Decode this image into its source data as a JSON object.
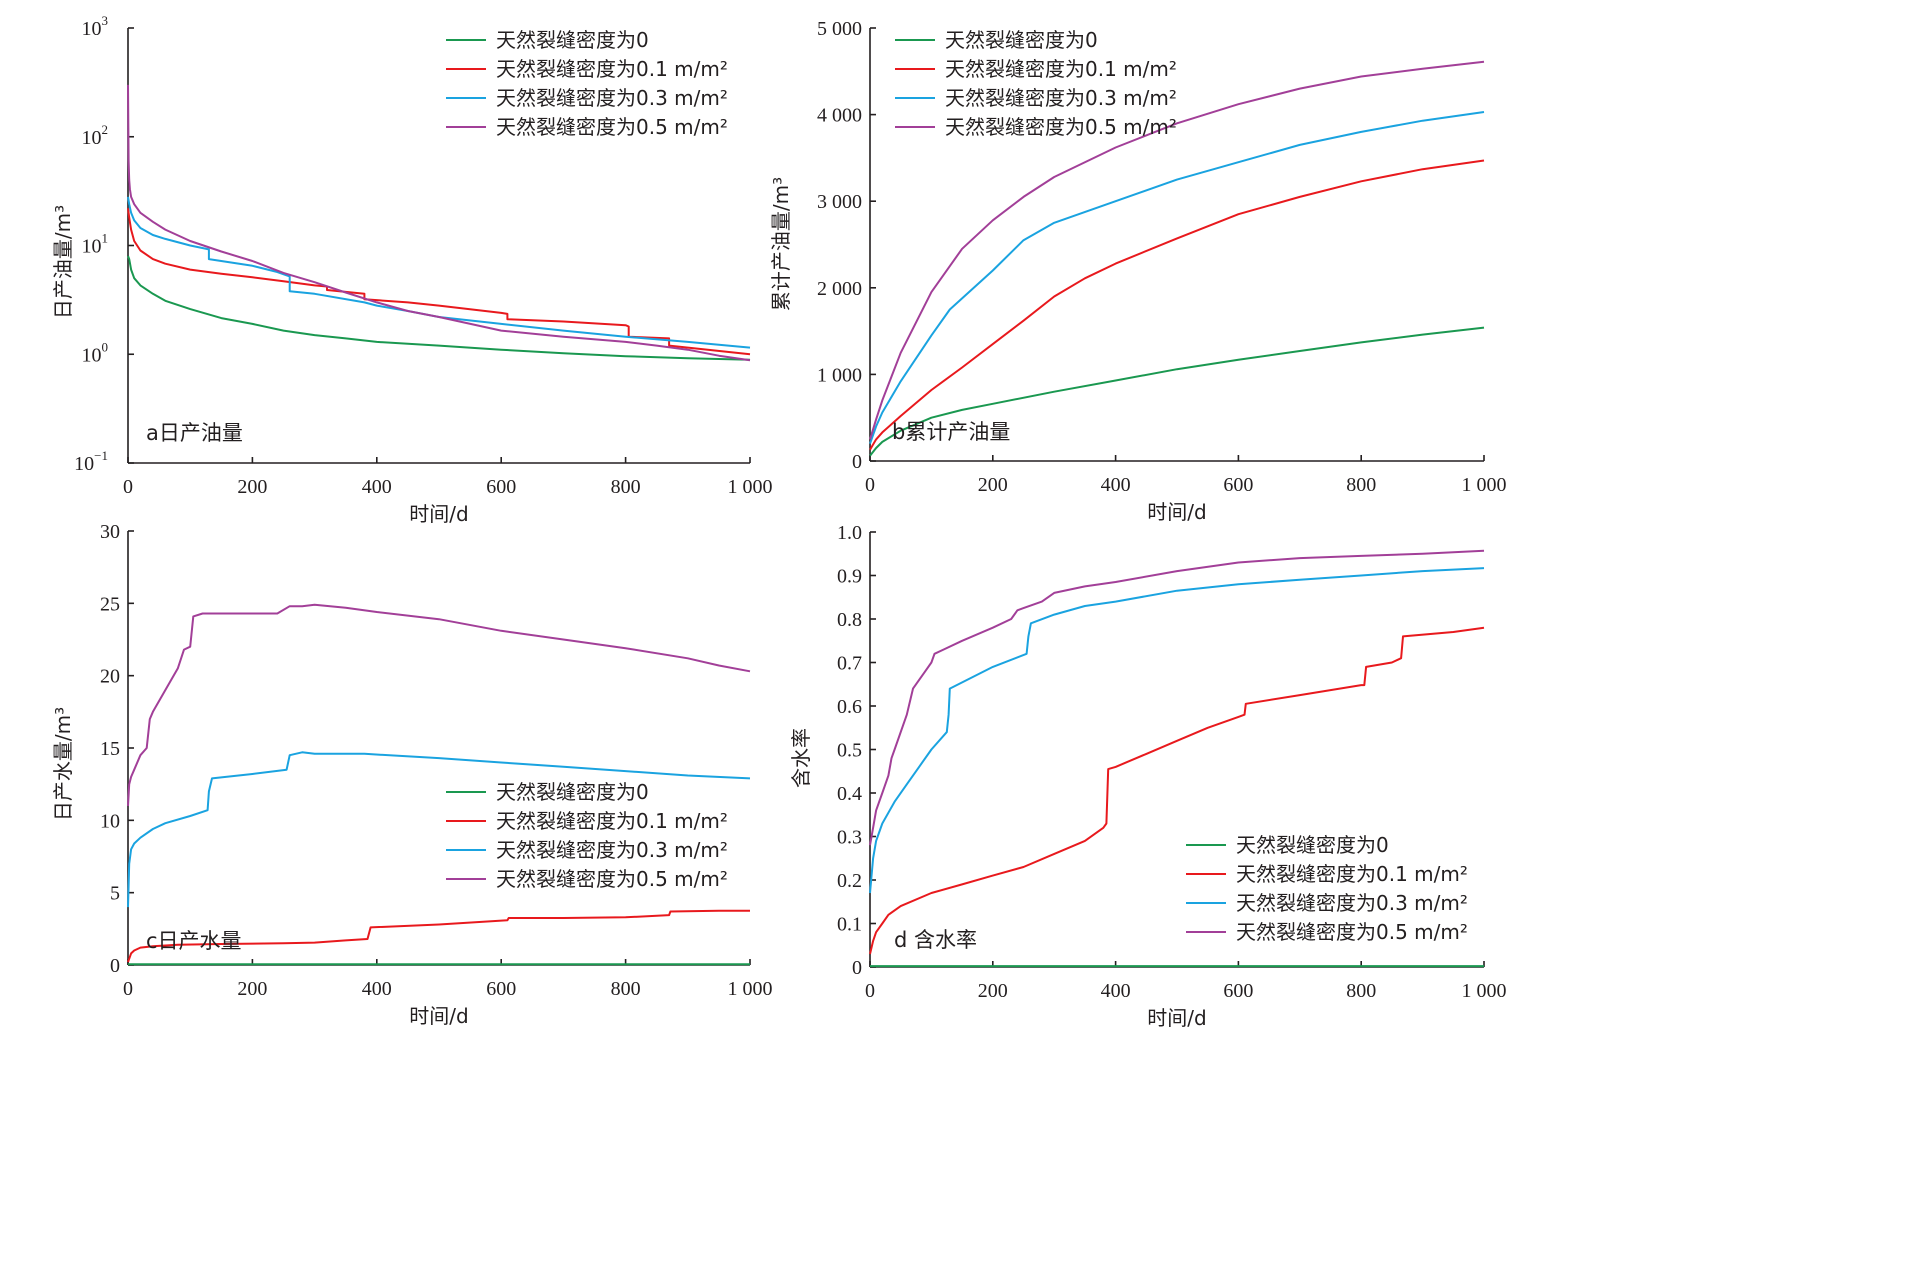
{
  "chart_data": [
    {
      "id": "a",
      "type": "line",
      "title": "a日产油量",
      "xlabel": "时间/d",
      "ylabel": "日产油量/m³",
      "yscale": "log",
      "xlim": [
        0,
        1000
      ],
      "ylim": [
        0.1,
        1000
      ],
      "xticks": [
        "0",
        "200",
        "400",
        "600",
        "800",
        "1 000"
      ],
      "yticks": [
        {
          "base": "10",
          "exp": "−1"
        },
        {
          "base": "10",
          "exp": "0"
        },
        {
          "base": "10",
          "exp": "1"
        },
        {
          "base": "10",
          "exp": "2"
        },
        {
          "base": "10",
          "exp": "3"
        }
      ],
      "legend_position": "top-right",
      "series": [
        {
          "name": "天然裂缝密度为0",
          "color": "#1a9850",
          "x": [
            0,
            2,
            5,
            10,
            20,
            40,
            60,
            100,
            150,
            200,
            250,
            300,
            350,
            400,
            500,
            600,
            700,
            800,
            900,
            1000
          ],
          "y": [
            8.0,
            7.5,
            6.0,
            5.0,
            4.3,
            3.6,
            3.1,
            2.6,
            2.15,
            1.9,
            1.65,
            1.5,
            1.4,
            1.3,
            1.2,
            1.1,
            1.02,
            0.96,
            0.92,
            0.89
          ]
        },
        {
          "name": "天然裂缝密度为0.1 m/m²",
          "color": "#e8191d",
          "x": [
            0,
            2,
            5,
            10,
            20,
            40,
            60,
            100,
            150,
            200,
            250,
            300,
            320,
            320,
            380,
            380,
            450,
            500,
            600,
            610,
            610,
            700,
            800,
            805,
            805,
            870,
            870,
            1000
          ],
          "y": [
            22,
            18,
            14,
            11,
            9,
            7.5,
            6.8,
            6.0,
            5.5,
            5.1,
            4.7,
            4.3,
            4.2,
            3.9,
            3.6,
            3.2,
            3.0,
            2.8,
            2.4,
            2.35,
            2.1,
            2.0,
            1.85,
            1.8,
            1.45,
            1.4,
            1.2,
            1.0
          ]
        },
        {
          "name": "天然裂缝密度为0.3 m/m²",
          "color": "#1aa3e0",
          "x": [
            0,
            2,
            5,
            10,
            20,
            40,
            60,
            100,
            130,
            130,
            200,
            240,
            260,
            260,
            300,
            380,
            400,
            450,
            500,
            600,
            700,
            800,
            900,
            1000
          ],
          "y": [
            28,
            24,
            20,
            17,
            14.5,
            12.5,
            11.5,
            10,
            9.2,
            7.5,
            6.5,
            5.7,
            5.2,
            3.8,
            3.6,
            3.0,
            2.8,
            2.5,
            2.2,
            1.9,
            1.65,
            1.45,
            1.3,
            1.15
          ]
        },
        {
          "name": "天然裂缝密度为0.5 m/m²",
          "color": "#a23f98",
          "x": [
            0,
            1,
            2,
            3,
            5,
            10,
            20,
            40,
            60,
            100,
            150,
            200,
            250,
            300,
            350,
            400,
            450,
            500,
            600,
            700,
            800,
            850,
            900,
            950,
            1000
          ],
          "y": [
            300,
            60,
            40,
            33,
            28,
            24,
            20,
            16.5,
            14,
            11,
            8.8,
            7.2,
            5.6,
            4.6,
            3.7,
            3.0,
            2.5,
            2.2,
            1.65,
            1.45,
            1.3,
            1.2,
            1.1,
            0.97,
            0.88
          ]
        }
      ]
    },
    {
      "id": "b",
      "type": "line",
      "title": "b累计产油量",
      "xlabel": "时间/d",
      "ylabel": "累计产油量/m³",
      "yscale": "linear",
      "xlim": [
        0,
        1000
      ],
      "ylim": [
        0,
        5000
      ],
      "xticks": [
        "0",
        "200",
        "400",
        "600",
        "800",
        "1 000"
      ],
      "yticks": [
        "0",
        "1 000",
        "2 000",
        "3 000",
        "4 000",
        "5 000"
      ],
      "legend_position": "top-left",
      "series": [
        {
          "name": "天然裂缝密度为0",
          "color": "#1a9850",
          "x": [
            0,
            10,
            20,
            50,
            100,
            150,
            200,
            300,
            400,
            500,
            600,
            700,
            800,
            900,
            1000
          ],
          "y": [
            60,
            150,
            220,
            350,
            500,
            590,
            660,
            800,
            930,
            1060,
            1170,
            1270,
            1370,
            1460,
            1540
          ]
        },
        {
          "name": "天然裂缝密度为0.1 m/m²",
          "color": "#e8191d",
          "x": [
            0,
            10,
            20,
            50,
            100,
            150,
            200,
            250,
            300,
            350,
            400,
            500,
            600,
            700,
            800,
            900,
            1000
          ],
          "y": [
            130,
            250,
            330,
            520,
            820,
            1080,
            1350,
            1620,
            1900,
            2110,
            2280,
            2570,
            2850,
            3050,
            3230,
            3370,
            3470
          ]
        },
        {
          "name": "天然裂缝密度为0.3 m/m²",
          "color": "#1aa3e0",
          "x": [
            0,
            10,
            20,
            50,
            100,
            130,
            200,
            250,
            300,
            400,
            500,
            600,
            700,
            800,
            900,
            1000
          ],
          "y": [
            200,
            400,
            560,
            920,
            1450,
            1750,
            2200,
            2550,
            2750,
            3000,
            3250,
            3450,
            3650,
            3800,
            3930,
            4030
          ]
        },
        {
          "name": "天然裂缝密度为0.5 m/m²",
          "color": "#a23f98",
          "x": [
            0,
            10,
            20,
            50,
            100,
            150,
            200,
            250,
            300,
            400,
            500,
            600,
            700,
            800,
            900,
            1000
          ],
          "y": [
            250,
            480,
            700,
            1250,
            1950,
            2450,
            2780,
            3050,
            3280,
            3620,
            3900,
            4120,
            4300,
            4440,
            4530,
            4610
          ]
        }
      ]
    },
    {
      "id": "c",
      "type": "line",
      "title": "c日产水量",
      "xlabel": "时间/d",
      "ylabel": "日产水量/m³",
      "yscale": "linear",
      "xlim": [
        0,
        1000
      ],
      "ylim": [
        0,
        30
      ],
      "xticks": [
        "0",
        "200",
        "400",
        "600",
        "800",
        "1 000"
      ],
      "yticks": [
        "0",
        "5",
        "10",
        "15",
        "20",
        "25",
        "30"
      ],
      "legend_position": "center-right",
      "series": [
        {
          "name": "天然裂缝密度为0",
          "color": "#1a9850",
          "x": [
            0,
            1000
          ],
          "y": [
            0.05,
            0.05
          ]
        },
        {
          "name": "天然裂缝密度为0.1 m/m²",
          "color": "#e8191d",
          "x": [
            0,
            5,
            10,
            20,
            40,
            80,
            150,
            250,
            300,
            350,
            385,
            390,
            500,
            610,
            612,
            700,
            800,
            870,
            872,
            950,
            1000
          ],
          "y": [
            0.2,
            0.8,
            1.0,
            1.2,
            1.3,
            1.4,
            1.45,
            1.5,
            1.55,
            1.7,
            1.8,
            2.6,
            2.8,
            3.1,
            3.25,
            3.25,
            3.3,
            3.45,
            3.7,
            3.75,
            3.75
          ]
        },
        {
          "name": "天然裂缝密度为0.3 m/m²",
          "color": "#1aa3e0",
          "x": [
            0,
            2,
            5,
            10,
            20,
            40,
            60,
            100,
            128,
            130,
            135,
            200,
            255,
            260,
            280,
            300,
            380,
            500,
            600,
            700,
            800,
            900,
            1000
          ],
          "y": [
            4,
            7,
            8,
            8.4,
            8.8,
            9.4,
            9.8,
            10.3,
            10.7,
            12,
            12.9,
            13.2,
            13.5,
            14.5,
            14.7,
            14.6,
            14.6,
            14.3,
            14.0,
            13.7,
            13.4,
            13.1,
            12.9
          ]
        },
        {
          "name": "天然裂缝密度为0.5 m/m²",
          "color": "#a23f98",
          "x": [
            0,
            2,
            5,
            10,
            20,
            30,
            35,
            40,
            60,
            80,
            90,
            100,
            105,
            120,
            150,
            200,
            240,
            260,
            280,
            300,
            350,
            400,
            500,
            600,
            700,
            800,
            900,
            950,
            1000
          ],
          "y": [
            11,
            12.5,
            13,
            13.5,
            14.5,
            15,
            17,
            17.5,
            19,
            20.5,
            21.8,
            22,
            24.1,
            24.3,
            24.3,
            24.3,
            24.3,
            24.8,
            24.8,
            24.9,
            24.7,
            24.4,
            23.9,
            23.1,
            22.5,
            21.9,
            21.2,
            20.7,
            20.3
          ]
        }
      ]
    },
    {
      "id": "d",
      "type": "line",
      "title": "d 含水率",
      "xlabel": "时间/d",
      "ylabel": "含水率",
      "yscale": "linear",
      "xlim": [
        0,
        1000
      ],
      "ylim": [
        0,
        1.0
      ],
      "xticks": [
        "0",
        "200",
        "400",
        "600",
        "800",
        "1 000"
      ],
      "yticks": [
        "0",
        "0.1",
        "0.2",
        "0.3",
        "0.4",
        "0.5",
        "0.6",
        "0.7",
        "0.8",
        "0.9",
        "1.0"
      ],
      "legend_position": "bottom-right",
      "series": [
        {
          "name": "天然裂缝密度为0",
          "color": "#1a9850",
          "x": [
            0,
            1000
          ],
          "y": [
            0.002,
            0.002
          ]
        },
        {
          "name": "天然裂缝密度为0.1 m/m²",
          "color": "#e8191d",
          "x": [
            0,
            5,
            10,
            20,
            30,
            50,
            100,
            150,
            200,
            250,
            300,
            350,
            380,
            385,
            388,
            400,
            450,
            500,
            550,
            600,
            610,
            612,
            700,
            800,
            805,
            808,
            850,
            865,
            868,
            950,
            1000
          ],
          "y": [
            0.03,
            0.06,
            0.08,
            0.1,
            0.12,
            0.14,
            0.17,
            0.19,
            0.21,
            0.23,
            0.26,
            0.29,
            0.32,
            0.33,
            0.455,
            0.46,
            0.49,
            0.52,
            0.55,
            0.575,
            0.58,
            0.605,
            0.625,
            0.648,
            0.648,
            0.69,
            0.7,
            0.71,
            0.76,
            0.77,
            0.78
          ]
        },
        {
          "name": "天然裂缝密度为0.3 m/m²",
          "color": "#1aa3e0",
          "x": [
            0,
            5,
            10,
            20,
            40,
            60,
            80,
            100,
            125,
            128,
            130,
            200,
            255,
            258,
            262,
            300,
            350,
            400,
            500,
            600,
            700,
            800,
            900,
            1000
          ],
          "y": [
            0.17,
            0.25,
            0.29,
            0.33,
            0.38,
            0.42,
            0.46,
            0.5,
            0.54,
            0.58,
            0.64,
            0.69,
            0.72,
            0.76,
            0.79,
            0.81,
            0.83,
            0.84,
            0.865,
            0.88,
            0.89,
            0.9,
            0.91,
            0.917
          ]
        },
        {
          "name": "天然裂缝密度为0.5 m/m²",
          "color": "#a23f98",
          "x": [
            0,
            5,
            10,
            20,
            30,
            35,
            40,
            60,
            70,
            80,
            90,
            100,
            105,
            120,
            150,
            200,
            230,
            240,
            250,
            280,
            300,
            350,
            400,
            500,
            600,
            700,
            800,
            900,
            1000
          ],
          "y": [
            0.28,
            0.32,
            0.36,
            0.4,
            0.44,
            0.48,
            0.5,
            0.58,
            0.64,
            0.66,
            0.68,
            0.7,
            0.72,
            0.73,
            0.75,
            0.78,
            0.8,
            0.82,
            0.825,
            0.84,
            0.86,
            0.875,
            0.885,
            0.91,
            0.93,
            0.94,
            0.945,
            0.95,
            0.957
          ]
        }
      ]
    }
  ]
}
